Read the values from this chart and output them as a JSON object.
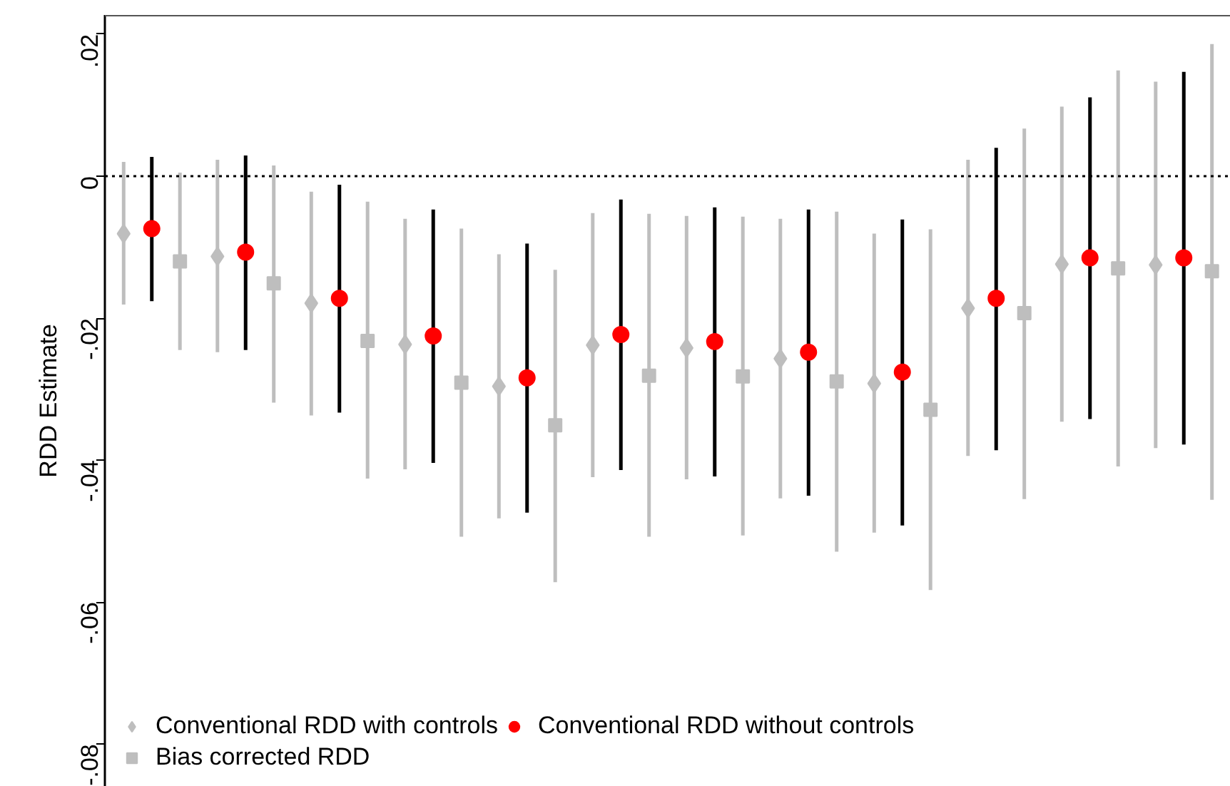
{
  "chart_data": {
    "type": "scatter",
    "ylabel": "RDD Estimate",
    "categories": [
      null,
      null,
      null,
      null,
      null,
      null,
      null,
      null,
      null,
      null,
      null,
      null
    ],
    "series": [
      {
        "name": "Conventional RDD with controls",
        "color": "#bebebe",
        "marker": "diamond",
        "values": [
          -0.0081,
          -0.0113,
          -0.0179,
          -0.0237,
          -0.0296,
          -0.0238,
          -0.0242,
          -0.0257,
          -0.0292,
          -0.0186,
          -0.0124,
          -0.0125
        ],
        "errors": [
          [
            -0.0181,
            0.002
          ],
          [
            -0.0248,
            0.0023
          ],
          [
            -0.0337,
            -0.0022
          ],
          [
            -0.0413,
            -0.006
          ],
          [
            -0.0482,
            -0.011
          ],
          [
            -0.0424,
            -0.0052
          ],
          [
            -0.0427,
            -0.0056
          ],
          [
            -0.0454,
            -0.006
          ],
          [
            -0.0502,
            -0.0081
          ],
          [
            -0.0394,
            0.0023
          ],
          [
            -0.0346,
            0.0098
          ],
          [
            -0.0383,
            0.0133
          ]
        ]
      },
      {
        "name": "Conventional RDD without controls",
        "color": "#ff0000",
        "marker": "circle",
        "values": [
          -0.0074,
          -0.0107,
          -0.0172,
          -0.0225,
          -0.0284,
          -0.0223,
          -0.0233,
          -0.0248,
          -0.0276,
          -0.0172,
          -0.0115,
          -0.0115
        ],
        "errors": [
          [
            -0.0176,
            0.0027
          ],
          [
            -0.0245,
            0.0029
          ],
          [
            -0.0333,
            -0.0012
          ],
          [
            -0.0404,
            -0.0047
          ],
          [
            -0.0474,
            -0.0095
          ],
          [
            -0.0414,
            -0.0033
          ],
          [
            -0.0423,
            -0.0044
          ],
          [
            -0.045,
            -0.0047
          ],
          [
            -0.0492,
            -0.0061
          ],
          [
            -0.0386,
            0.004
          ],
          [
            -0.0342,
            0.0111
          ],
          [
            -0.0378,
            0.0147
          ]
        ]
      },
      {
        "name": "Bias corrected RDD",
        "color": "#bebebe",
        "marker": "square",
        "values": [
          -0.012,
          -0.0151,
          -0.0232,
          -0.0291,
          -0.0351,
          -0.0281,
          -0.0282,
          -0.0289,
          -0.0329,
          -0.0193,
          -0.013,
          -0.0134
        ],
        "errors": [
          [
            -0.0245,
            0.0005
          ],
          [
            -0.0319,
            0.0015
          ],
          [
            -0.0426,
            -0.0036
          ],
          [
            -0.0508,
            -0.0074
          ],
          [
            -0.0572,
            -0.0132
          ],
          [
            -0.0508,
            -0.0053
          ],
          [
            -0.0506,
            -0.0057
          ],
          [
            -0.0529,
            -0.005
          ],
          [
            -0.0583,
            -0.0075
          ],
          [
            -0.0455,
            0.0067
          ],
          [
            -0.0409,
            0.0149
          ],
          [
            -0.0456,
            0.0186
          ]
        ]
      }
    ],
    "ylim": [
      -0.086,
      0.0227
    ],
    "yticks": [
      {
        "value": 0.02,
        "label": ".02"
      },
      0,
      {
        "value": -0.02,
        "label": "-.02"
      },
      {
        "value": -0.04,
        "label": "-.04"
      },
      {
        "value": -0.06,
        "label": "-.06"
      },
      {
        "value": -0.08,
        "label": "-.08"
      }
    ],
    "ref_lines": [
      {
        "axis": "y",
        "value": 0,
        "color": "#000000",
        "line_style": "dotted"
      }
    ],
    "grid": false,
    "legend": "bottom",
    "tick_labels": "y"
  }
}
